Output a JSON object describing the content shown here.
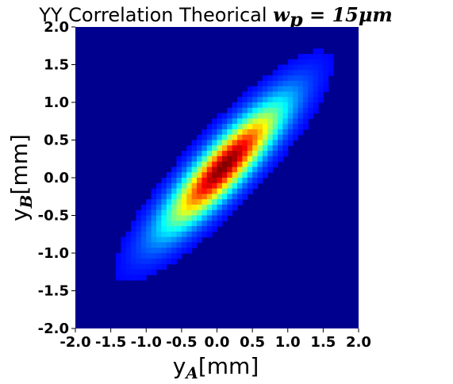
{
  "chart_data": {
    "type": "heatmap",
    "title_prefix": "YY Correlation Theorical ",
    "title_math": "w",
    "title_math_sub": "p",
    "title_math_rest": " = 15μm",
    "xlabel_main": "y",
    "xlabel_sub": "A",
    "xlabel_unit": "[mm]",
    "ylabel_main": "y",
    "ylabel_sub": "B",
    "ylabel_unit": "[mm]",
    "xlim": [
      -2.0,
      2.0
    ],
    "ylim": [
      -2.0,
      2.0
    ],
    "x_ticks": [
      "-2.0",
      "-1.5",
      "-1.0",
      "-0.5",
      "0.0",
      "0.5",
      "1.0",
      "1.5",
      "2.0"
    ],
    "y_ticks": [
      "2.0",
      "1.5",
      "1.0",
      "0.5",
      "0.0",
      "-0.5",
      "-1.0",
      "-1.5",
      "-2.0"
    ],
    "x_tick_values": [
      -2.0,
      -1.5,
      -1.0,
      -0.5,
      0.0,
      0.5,
      1.0,
      1.5,
      2.0
    ],
    "y_tick_values": [
      2.0,
      1.5,
      1.0,
      0.5,
      0.0,
      -0.5,
      -1.0,
      -1.5,
      -2.0
    ],
    "colormap": "jet",
    "grid": false,
    "distribution": {
      "center_x": 0.1,
      "center_y": 0.15,
      "sigma_x": 0.55,
      "sigma_y": 0.55,
      "correlation": 0.88
    },
    "background_color": "#00008f"
  }
}
